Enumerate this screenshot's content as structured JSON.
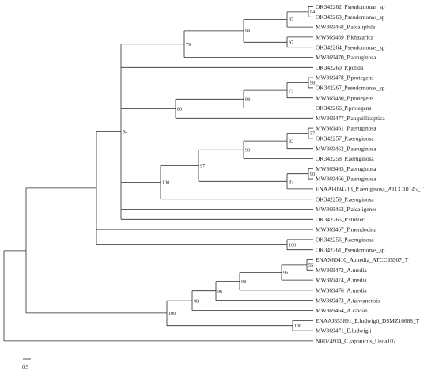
{
  "tree": {
    "leaves": [
      "OK342262_Pseudomonas_sp",
      "OK342263_Pseudomonas_sp",
      "MW369468_P.alcaliphila",
      "MW369469_P.khazarica",
      "OK342264_Pseudomonas_sp",
      "MW369470_P.aeruginosa",
      "OK342260_P.putida",
      "MW369478_P.protegens",
      "OK342267_Pseudomonas_sp",
      "MW369480_P.protegens",
      "OK342266_P.protegens",
      "MW369477_P.anguilliseptica",
      "MW369461_P.aeruginosa",
      "OK342257_P.aeruginosa",
      "MW369462_P.aeruginosa",
      "OK342258_P.aeruginosa",
      "MW369465_P.aeruginosa",
      "MW369466_P.aeruginosa",
      "ENAAF094713_P.aeruginosa_ATCC10145_T",
      "OK342259_P.aeruginosa",
      "MW369463_P.alcaligenes",
      "OK342265_P.stutzeri",
      "MW369467_P.mendocina",
      "OK342256_P.aeruginosa",
      "OK342261_Pseudomonas_sp",
      "ENAX60410_A.media_ATCC33907_T",
      "MW369472_A.media",
      "MW369474_A.media",
      "MW369476_A.media",
      "MW369473_A.taiwanensis",
      "MW369464_A.caviae",
      "ENAAJ853891_E.ludwigii_DSMZ16688_T",
      "MW369471_E.ludwigii",
      "NR074804_C.japonicus_Ueda107"
    ],
    "bootstrap": [
      "94",
      "97",
      "79",
      "97",
      "99",
      "98",
      "73",
      "98",
      "80",
      "57",
      "82",
      "99",
      "90",
      "97",
      "87",
      "100",
      "54",
      "90",
      "100",
      "55",
      "96",
      "98",
      "96",
      "98",
      "100",
      "100"
    ],
    "scale_bar_label": "0.5"
  }
}
